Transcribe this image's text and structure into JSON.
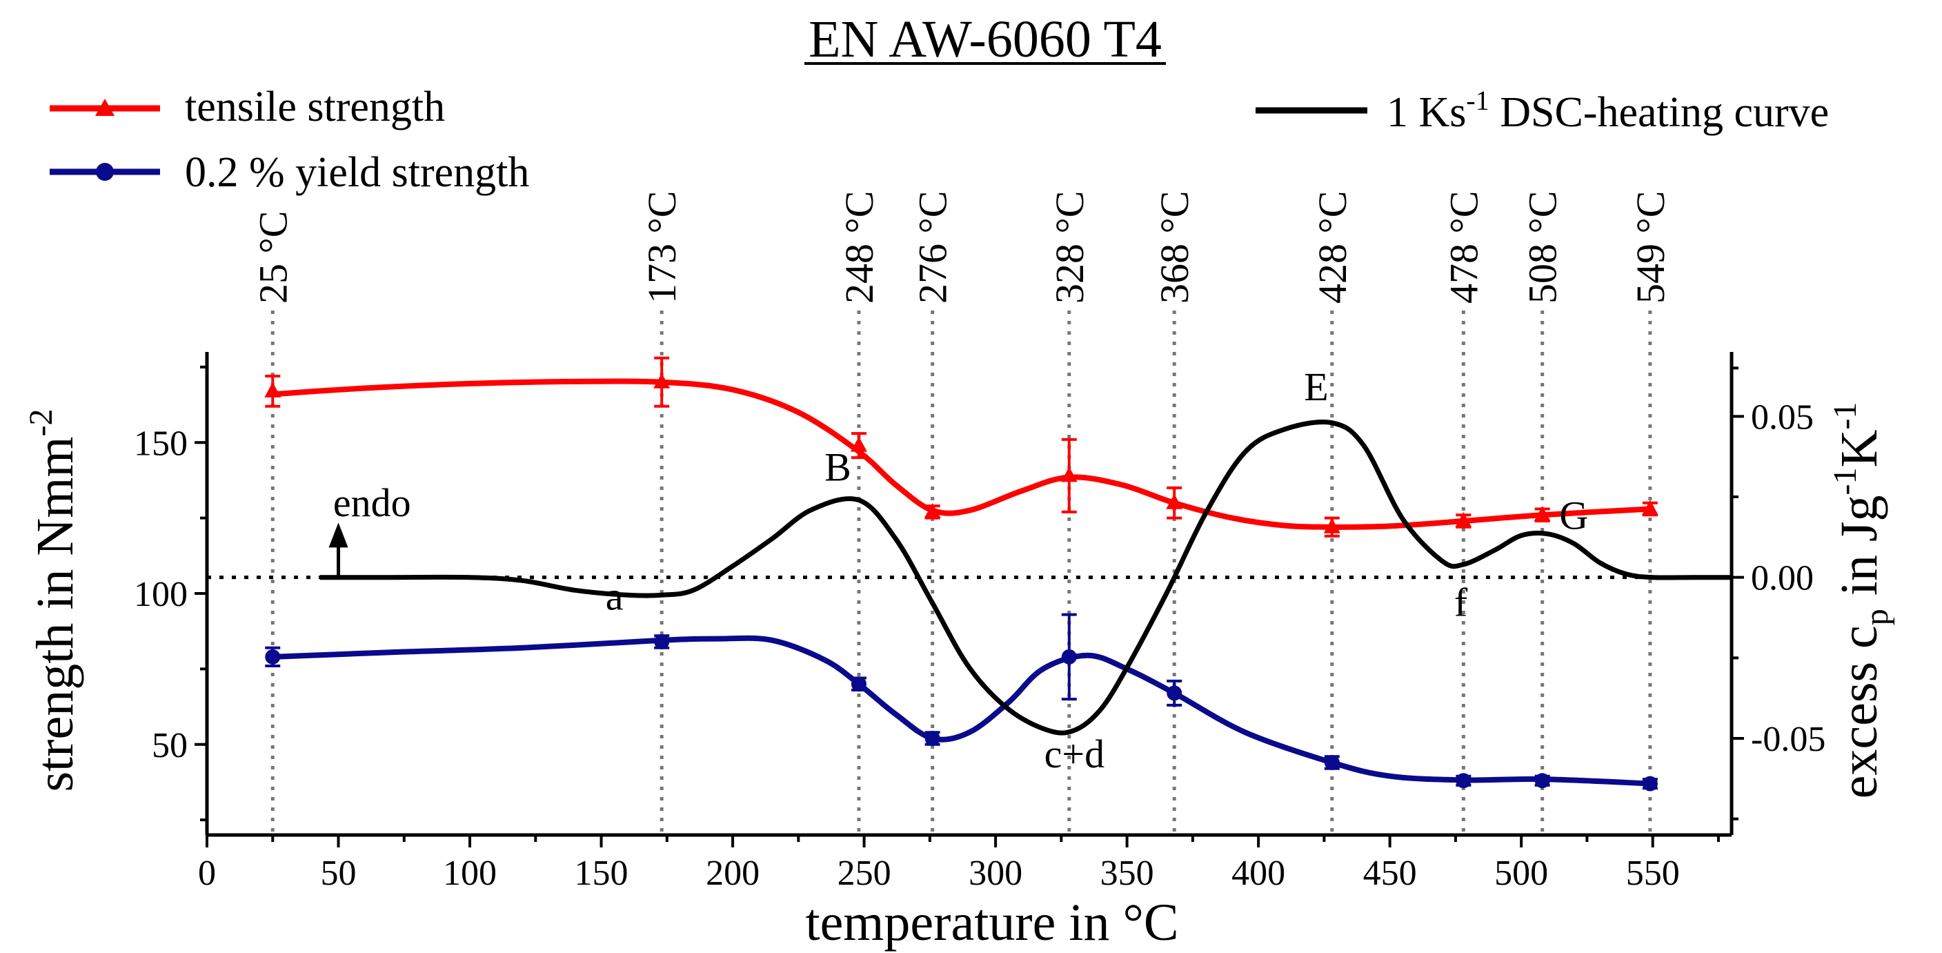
{
  "chart_data": {
    "type": "line",
    "title": "EN AW-6060 T4",
    "xlabel": "temperature in °C",
    "ylabel_left": "strength in Nmm",
    "ylabel_left_sup": "-2",
    "ylabel_right": {
      "t1": "excess c",
      "sub": "p",
      "t2": " in Jg",
      "sup1": "-1",
      "t3": "K",
      "sup2": "-1"
    },
    "xlim": [
      0,
      580
    ],
    "ylim_left": [
      20,
      180
    ],
    "ylim_right": [
      -0.08,
      0.07
    ],
    "x_ticks": [
      0,
      50,
      100,
      150,
      200,
      250,
      300,
      350,
      400,
      450,
      500,
      550
    ],
    "x_tick_labels": [
      "0",
      "50",
      "100",
      "150",
      "200",
      "250",
      "300",
      "350",
      "400",
      "450",
      "500",
      "550"
    ],
    "y_left_ticks": [
      50,
      100,
      150
    ],
    "y_left_tick_labels": [
      "50",
      "100",
      "150"
    ],
    "y_right_ticks": [
      0.05,
      0.0,
      -0.05
    ],
    "y_right_tick_labels": [
      "0.05",
      "0.00",
      "-0.05"
    ],
    "reference_temperatures": [
      25,
      173,
      248,
      276,
      328,
      368,
      428,
      478,
      508,
      549
    ],
    "reference_labels": [
      "25 °C",
      "173 °C",
      "248 °C",
      "276 °C",
      "328 °C",
      "368 °C",
      "428 °C",
      "478 °C",
      "508 °C",
      "549 °C"
    ],
    "series": [
      {
        "name": "tensile strength",
        "axis": "left",
        "color": "#ff0000",
        "marker": "triangle",
        "x": [
          25,
          173,
          248,
          276,
          328,
          368,
          428,
          478,
          508,
          549
        ],
        "y": [
          167,
          170,
          149,
          127,
          139,
          130,
          122,
          124,
          126,
          128
        ],
        "err": [
          5,
          8,
          4,
          2,
          12,
          5,
          3,
          2,
          2,
          2
        ],
        "curve_x": [
          25,
          60,
          100,
          140,
          173,
          200,
          225,
          248,
          262,
          276,
          290,
          310,
          328,
          348,
          368,
          390,
          410,
          428,
          450,
          478,
          508,
          549
        ],
        "curve_y": [
          166,
          168,
          169.5,
          170.2,
          170,
          167.5,
          160,
          147,
          136,
          127.5,
          127.5,
          134,
          138.5,
          136,
          130,
          125,
          122.5,
          122,
          122.3,
          124,
          126,
          128
        ]
      },
      {
        "name": "0.2 % yield strength",
        "axis": "left",
        "color": "#0a0a8c",
        "marker": "circle",
        "x": [
          25,
          173,
          248,
          276,
          328,
          368,
          428,
          478,
          508,
          549
        ],
        "y": [
          79,
          84,
          70,
          52,
          79,
          67,
          44,
          38,
          38,
          37
        ],
        "err": [
          3,
          2,
          2,
          2,
          14,
          4,
          2,
          1.5,
          1.5,
          1.5
        ],
        "curve_x": [
          25,
          70,
          120,
          173,
          195,
          215,
          235,
          248,
          262,
          276,
          290,
          305,
          318,
          335,
          350,
          368,
          395,
          428,
          450,
          478,
          508,
          549
        ],
        "curve_y": [
          79,
          80.5,
          82,
          84.5,
          85,
          84.5,
          78,
          70,
          60,
          52,
          54,
          64,
          75,
          79.5,
          75,
          67,
          54,
          44,
          39.5,
          38.2,
          38.5,
          37
        ]
      },
      {
        "name": "1 Ks-1 DSC-heating curve",
        "axis": "right",
        "color": "#000000",
        "x": [
          43,
          70,
          100,
          120,
          140,
          160,
          173,
          185,
          200,
          215,
          230,
          248,
          262,
          276,
          290,
          305,
          320,
          330,
          340,
          350,
          365,
          380,
          395,
          410,
          428,
          440,
          455,
          470,
          478,
          490,
          500,
          510,
          520,
          530,
          540,
          550,
          565,
          580
        ],
        "y": [
          0.0,
          0.0,
          0.0,
          -0.001,
          -0.004,
          -0.0055,
          -0.0055,
          -0.004,
          0.0035,
          0.012,
          0.021,
          0.024,
          0.012,
          -0.008,
          -0.028,
          -0.041,
          -0.0475,
          -0.0475,
          -0.041,
          -0.028,
          -0.005,
          0.02,
          0.039,
          0.046,
          0.048,
          0.041,
          0.018,
          0.005,
          0.004,
          0.0085,
          0.013,
          0.0135,
          0.0105,
          0.0045,
          0.001,
          0.0,
          0.0,
          0.0
        ]
      }
    ],
    "legend": {
      "tensile": "tensile strength",
      "yield": "0.2 % yield strength",
      "dsc_pre": "1 Ks",
      "dsc_sup": "-1",
      "dsc_post": " DSC-heating curve"
    },
    "annotations": [
      {
        "text": "a",
        "x": 155,
        "y_right": -0.01
      },
      {
        "text": "B",
        "x": 240,
        "y_right": 0.03
      },
      {
        "text": "c+d",
        "x": 330,
        "y_right": -0.059
      },
      {
        "text": "E",
        "x": 422,
        "y_right": 0.055
      },
      {
        "text": "f",
        "x": 477,
        "y_right": -0.012
      },
      {
        "text": "G",
        "x": 520,
        "y_right": 0.015
      },
      {
        "text": "endo",
        "x": 48,
        "y_right": 0.019
      }
    ]
  }
}
